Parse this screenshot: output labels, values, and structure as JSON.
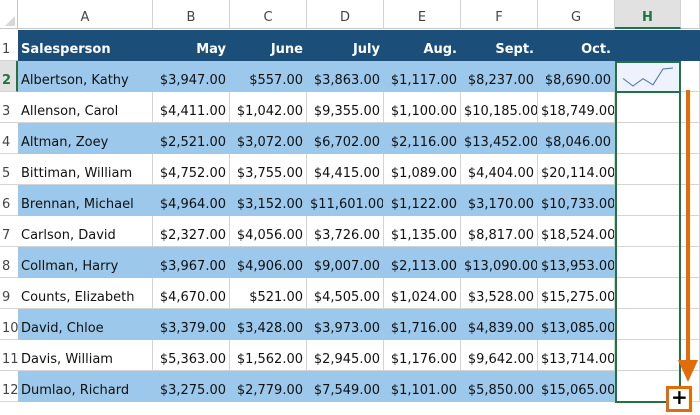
{
  "columns": [
    "A",
    "B",
    "C",
    "D",
    "E",
    "F",
    "G",
    "H"
  ],
  "selected_column": "H",
  "header": [
    "Salesperson",
    "May",
    "June",
    "July",
    "Aug.",
    "Sept.",
    "Oct."
  ],
  "rows": [
    {
      "n": "1"
    },
    {
      "n": "2",
      "name": "Albertson, Kathy",
      "vals": [
        "$3,947.00",
        "$557.00",
        "$3,863.00",
        "$1,117.00",
        "$8,237.00",
        "$8,690.00"
      ]
    },
    {
      "n": "3",
      "name": "Allenson, Carol",
      "vals": [
        "$4,411.00",
        "$1,042.00",
        "$9,355.00",
        "$1,100.00",
        "$10,185.00",
        "$18,749.00"
      ]
    },
    {
      "n": "4",
      "name": "Altman, Zoey",
      "vals": [
        "$2,521.00",
        "$3,072.00",
        "$6,702.00",
        "$2,116.00",
        "$13,452.00",
        "$8,046.00"
      ]
    },
    {
      "n": "5",
      "name": "Bittiman, William",
      "vals": [
        "$4,752.00",
        "$3,755.00",
        "$4,415.00",
        "$1,089.00",
        "$4,404.00",
        "$20,114.00"
      ]
    },
    {
      "n": "6",
      "name": "Brennan, Michael",
      "vals": [
        "$4,964.00",
        "$3,152.00",
        "$11,601.00",
        "$1,122.00",
        "$3,170.00",
        "$10,733.00"
      ]
    },
    {
      "n": "7",
      "name": "Carlson, David",
      "vals": [
        "$2,327.00",
        "$4,056.00",
        "$3,726.00",
        "$1,135.00",
        "$8,817.00",
        "$18,524.00"
      ]
    },
    {
      "n": "8",
      "name": "Collman, Harry",
      "vals": [
        "$3,967.00",
        "$4,906.00",
        "$9,007.00",
        "$2,113.00",
        "$13,090.00",
        "$13,953.00"
      ]
    },
    {
      "n": "9",
      "name": "Counts, Elizabeth",
      "vals": [
        "$4,670.00",
        "$521.00",
        "$4,505.00",
        "$1,024.00",
        "$3,528.00",
        "$15,275.00"
      ]
    },
    {
      "n": "10",
      "name": "David, Chloe",
      "vals": [
        "$3,379.00",
        "$3,428.00",
        "$3,973.00",
        "$1,716.00",
        "$4,839.00",
        "$13,085.00"
      ]
    },
    {
      "n": "11",
      "name": "Davis, William",
      "vals": [
        "$5,363.00",
        "$1,562.00",
        "$2,945.00",
        "$1,176.00",
        "$9,642.00",
        "$13,714.00"
      ]
    },
    {
      "n": "12",
      "name": "Dumlao, Richard",
      "vals": [
        "$3,275.00",
        "$2,779.00",
        "$7,549.00",
        "$1,101.00",
        "$5,850.00",
        "$15,065.00"
      ]
    }
  ],
  "sparkline_values": [
    3947,
    557,
    3863,
    1117,
    8237,
    8690
  ],
  "colors": {
    "header_bg": "#1b4f79",
    "band_bg": "#9bc8eb",
    "selection": "#217346",
    "arrow": "#e26b0a",
    "sparkline": "#4a6fb5"
  },
  "fill_handle_icon": "crosshair-plus-icon"
}
